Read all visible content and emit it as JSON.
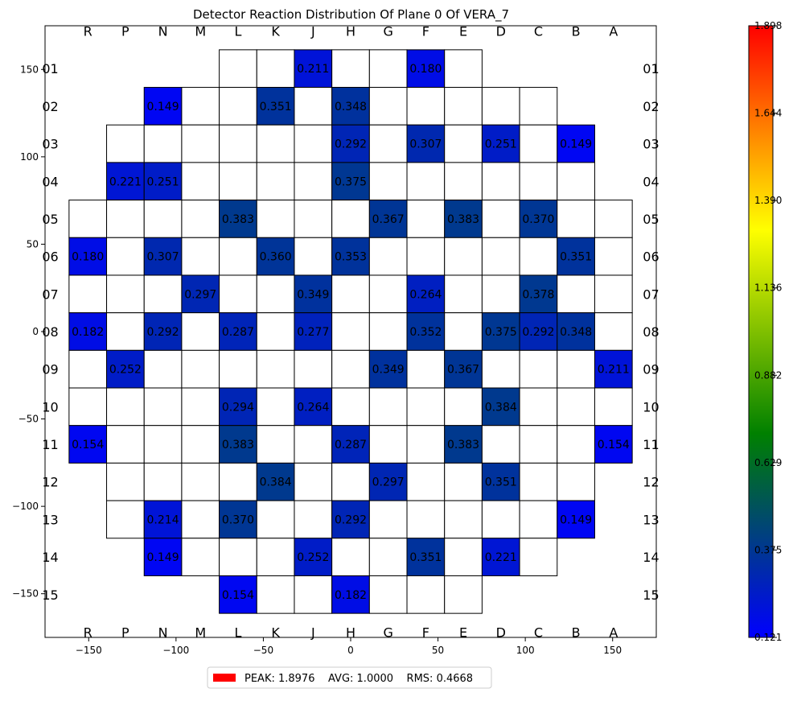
{
  "chart_data": {
    "type": "heatmap",
    "title": "Detector Reaction Distribution Of Plane 0 Of VERA_7",
    "column_labels": [
      "R",
      "P",
      "N",
      "M",
      "L",
      "K",
      "J",
      "H",
      "G",
      "F",
      "E",
      "D",
      "C",
      "B",
      "A"
    ],
    "row_labels": [
      "01",
      "02",
      "03",
      "04",
      "05",
      "06",
      "07",
      "08",
      "09",
      "10",
      "11",
      "12",
      "13",
      "14",
      "15"
    ],
    "row_layout": [
      {
        "row": "01",
        "first_col": "L",
        "last_col": "E"
      },
      {
        "row": "02",
        "first_col": "N",
        "last_col": "C"
      },
      {
        "row": "03",
        "first_col": "P",
        "last_col": "B"
      },
      {
        "row": "04",
        "first_col": "P",
        "last_col": "B"
      },
      {
        "row": "05",
        "first_col": "R",
        "last_col": "A"
      },
      {
        "row": "06",
        "first_col": "R",
        "last_col": "A"
      },
      {
        "row": "07",
        "first_col": "R",
        "last_col": "A"
      },
      {
        "row": "08",
        "first_col": "R",
        "last_col": "A"
      },
      {
        "row": "09",
        "first_col": "R",
        "last_col": "A"
      },
      {
        "row": "10",
        "first_col": "R",
        "last_col": "A"
      },
      {
        "row": "11",
        "first_col": "R",
        "last_col": "A"
      },
      {
        "row": "12",
        "first_col": "P",
        "last_col": "B"
      },
      {
        "row": "13",
        "first_col": "P",
        "last_col": "B"
      },
      {
        "row": "14",
        "first_col": "N",
        "last_col": "C"
      },
      {
        "row": "15",
        "first_col": "L",
        "last_col": "E"
      }
    ],
    "values": [
      {
        "row": "01",
        "col": "J",
        "value": 0.211,
        "label": "0.211"
      },
      {
        "row": "01",
        "col": "F",
        "value": 0.18,
        "label": "0.180"
      },
      {
        "row": "02",
        "col": "N",
        "value": 0.149,
        "label": "0.149"
      },
      {
        "row": "02",
        "col": "K",
        "value": 0.351,
        "label": "0.351"
      },
      {
        "row": "02",
        "col": "H",
        "value": 0.348,
        "label": "0.348"
      },
      {
        "row": "03",
        "col": "H",
        "value": 0.292,
        "label": "0.292"
      },
      {
        "row": "03",
        "col": "F",
        "value": 0.307,
        "label": "0.307"
      },
      {
        "row": "03",
        "col": "D",
        "value": 0.251,
        "label": "0.251"
      },
      {
        "row": "03",
        "col": "B",
        "value": 0.149,
        "label": "0.149"
      },
      {
        "row": "04",
        "col": "P",
        "value": 0.221,
        "label": "0.221"
      },
      {
        "row": "04",
        "col": "N",
        "value": 0.251,
        "label": "0.251"
      },
      {
        "row": "04",
        "col": "H",
        "value": 0.375,
        "label": "0.375"
      },
      {
        "row": "05",
        "col": "L",
        "value": 0.383,
        "label": "0.383"
      },
      {
        "row": "05",
        "col": "G",
        "value": 0.367,
        "label": "0.367"
      },
      {
        "row": "05",
        "col": "E",
        "value": 0.383,
        "label": "0.383"
      },
      {
        "row": "05",
        "col": "C",
        "value": 0.37,
        "label": "0.370"
      },
      {
        "row": "06",
        "col": "R",
        "value": 0.18,
        "label": "0.180"
      },
      {
        "row": "06",
        "col": "N",
        "value": 0.307,
        "label": "0.307"
      },
      {
        "row": "06",
        "col": "K",
        "value": 0.36,
        "label": "0.360"
      },
      {
        "row": "06",
        "col": "H",
        "value": 0.353,
        "label": "0.353"
      },
      {
        "row": "06",
        "col": "B",
        "value": 0.351,
        "label": "0.351"
      },
      {
        "row": "07",
        "col": "M",
        "value": 0.297,
        "label": "0.297"
      },
      {
        "row": "07",
        "col": "J",
        "value": 0.349,
        "label": "0.349"
      },
      {
        "row": "07",
        "col": "F",
        "value": 0.264,
        "label": "0.264"
      },
      {
        "row": "07",
        "col": "C",
        "value": 0.378,
        "label": "0.378"
      },
      {
        "row": "08",
        "col": "R",
        "value": 0.182,
        "label": "0.182"
      },
      {
        "row": "08",
        "col": "N",
        "value": 0.292,
        "label": "0.292"
      },
      {
        "row": "08",
        "col": "L",
        "value": 0.287,
        "label": "0.287"
      },
      {
        "row": "08",
        "col": "J",
        "value": 0.277,
        "label": "0.277"
      },
      {
        "row": "08",
        "col": "F",
        "value": 0.352,
        "label": "0.352"
      },
      {
        "row": "08",
        "col": "D",
        "value": 0.375,
        "label": "0.375"
      },
      {
        "row": "08",
        "col": "C",
        "value": 0.292,
        "label": "0.292"
      },
      {
        "row": "08",
        "col": "B",
        "value": 0.348,
        "label": "0.348"
      },
      {
        "row": "09",
        "col": "P",
        "value": 0.252,
        "label": "0.252"
      },
      {
        "row": "09",
        "col": "G",
        "value": 0.349,
        "label": "0.349"
      },
      {
        "row": "09",
        "col": "E",
        "value": 0.367,
        "label": "0.367"
      },
      {
        "row": "09",
        "col": "A",
        "value": 0.211,
        "label": "0.211"
      },
      {
        "row": "10",
        "col": "L",
        "value": 0.294,
        "label": "0.294"
      },
      {
        "row": "10",
        "col": "J",
        "value": 0.264,
        "label": "0.264"
      },
      {
        "row": "10",
        "col": "D",
        "value": 0.384,
        "label": "0.384"
      },
      {
        "row": "11",
        "col": "R",
        "value": 0.154,
        "label": "0.154"
      },
      {
        "row": "11",
        "col": "L",
        "value": 0.383,
        "label": "0.383"
      },
      {
        "row": "11",
        "col": "H",
        "value": 0.287,
        "label": "0.287"
      },
      {
        "row": "11",
        "col": "E",
        "value": 0.383,
        "label": "0.383"
      },
      {
        "row": "11",
        "col": "A",
        "value": 0.154,
        "label": "0.154"
      },
      {
        "row": "12",
        "col": "K",
        "value": 0.384,
        "label": "0.384"
      },
      {
        "row": "12",
        "col": "G",
        "value": 0.297,
        "label": "0.297"
      },
      {
        "row": "12",
        "col": "D",
        "value": 0.351,
        "label": "0.351"
      },
      {
        "row": "13",
        "col": "N",
        "value": 0.214,
        "label": "0.214"
      },
      {
        "row": "13",
        "col": "L",
        "value": 0.37,
        "label": "0.370"
      },
      {
        "row": "13",
        "col": "H",
        "value": 0.292,
        "label": "0.292"
      },
      {
        "row": "13",
        "col": "B",
        "value": 0.149,
        "label": "0.149"
      },
      {
        "row": "14",
        "col": "N",
        "value": 0.149,
        "label": "0.149"
      },
      {
        "row": "14",
        "col": "J",
        "value": 0.252,
        "label": "0.252"
      },
      {
        "row": "14",
        "col": "F",
        "value": 0.351,
        "label": "0.351"
      },
      {
        "row": "14",
        "col": "D",
        "value": 0.221,
        "label": "0.221"
      },
      {
        "row": "15",
        "col": "L",
        "value": 0.154,
        "label": "0.154"
      },
      {
        "row": "15",
        "col": "H",
        "value": 0.182,
        "label": "0.182"
      }
    ],
    "x_axis": {
      "range": [
        -175,
        175
      ],
      "ticks": [
        -150,
        -100,
        -50,
        0,
        50,
        100,
        150
      ],
      "tick_labels": [
        "−150",
        "−100",
        "−50",
        "0",
        "50",
        "100",
        "150"
      ]
    },
    "y_axis": {
      "range": [
        -175,
        175
      ],
      "ticks": [
        150,
        100,
        50,
        0,
        -50,
        -100,
        -150
      ],
      "tick_labels": [
        "150",
        "100",
        "50",
        "0",
        "−50",
        "−100",
        "−150"
      ]
    },
    "colorbar": {
      "min": 0.121,
      "max": 1.898,
      "tick_labels": [
        "1.898",
        "1.644",
        "1.390",
        "1.136",
        "0.882",
        "0.629",
        "0.375",
        "0.121"
      ],
      "colors": [
        "#0000ff",
        "#008000",
        "#ffff00",
        "#ff0000"
      ]
    },
    "legend": {
      "text": "PEAK: 1.8976    AVG: 1.0000    RMS: 0.4668",
      "color": "#ff0000",
      "placement": "bottom-center"
    },
    "grid": false
  }
}
